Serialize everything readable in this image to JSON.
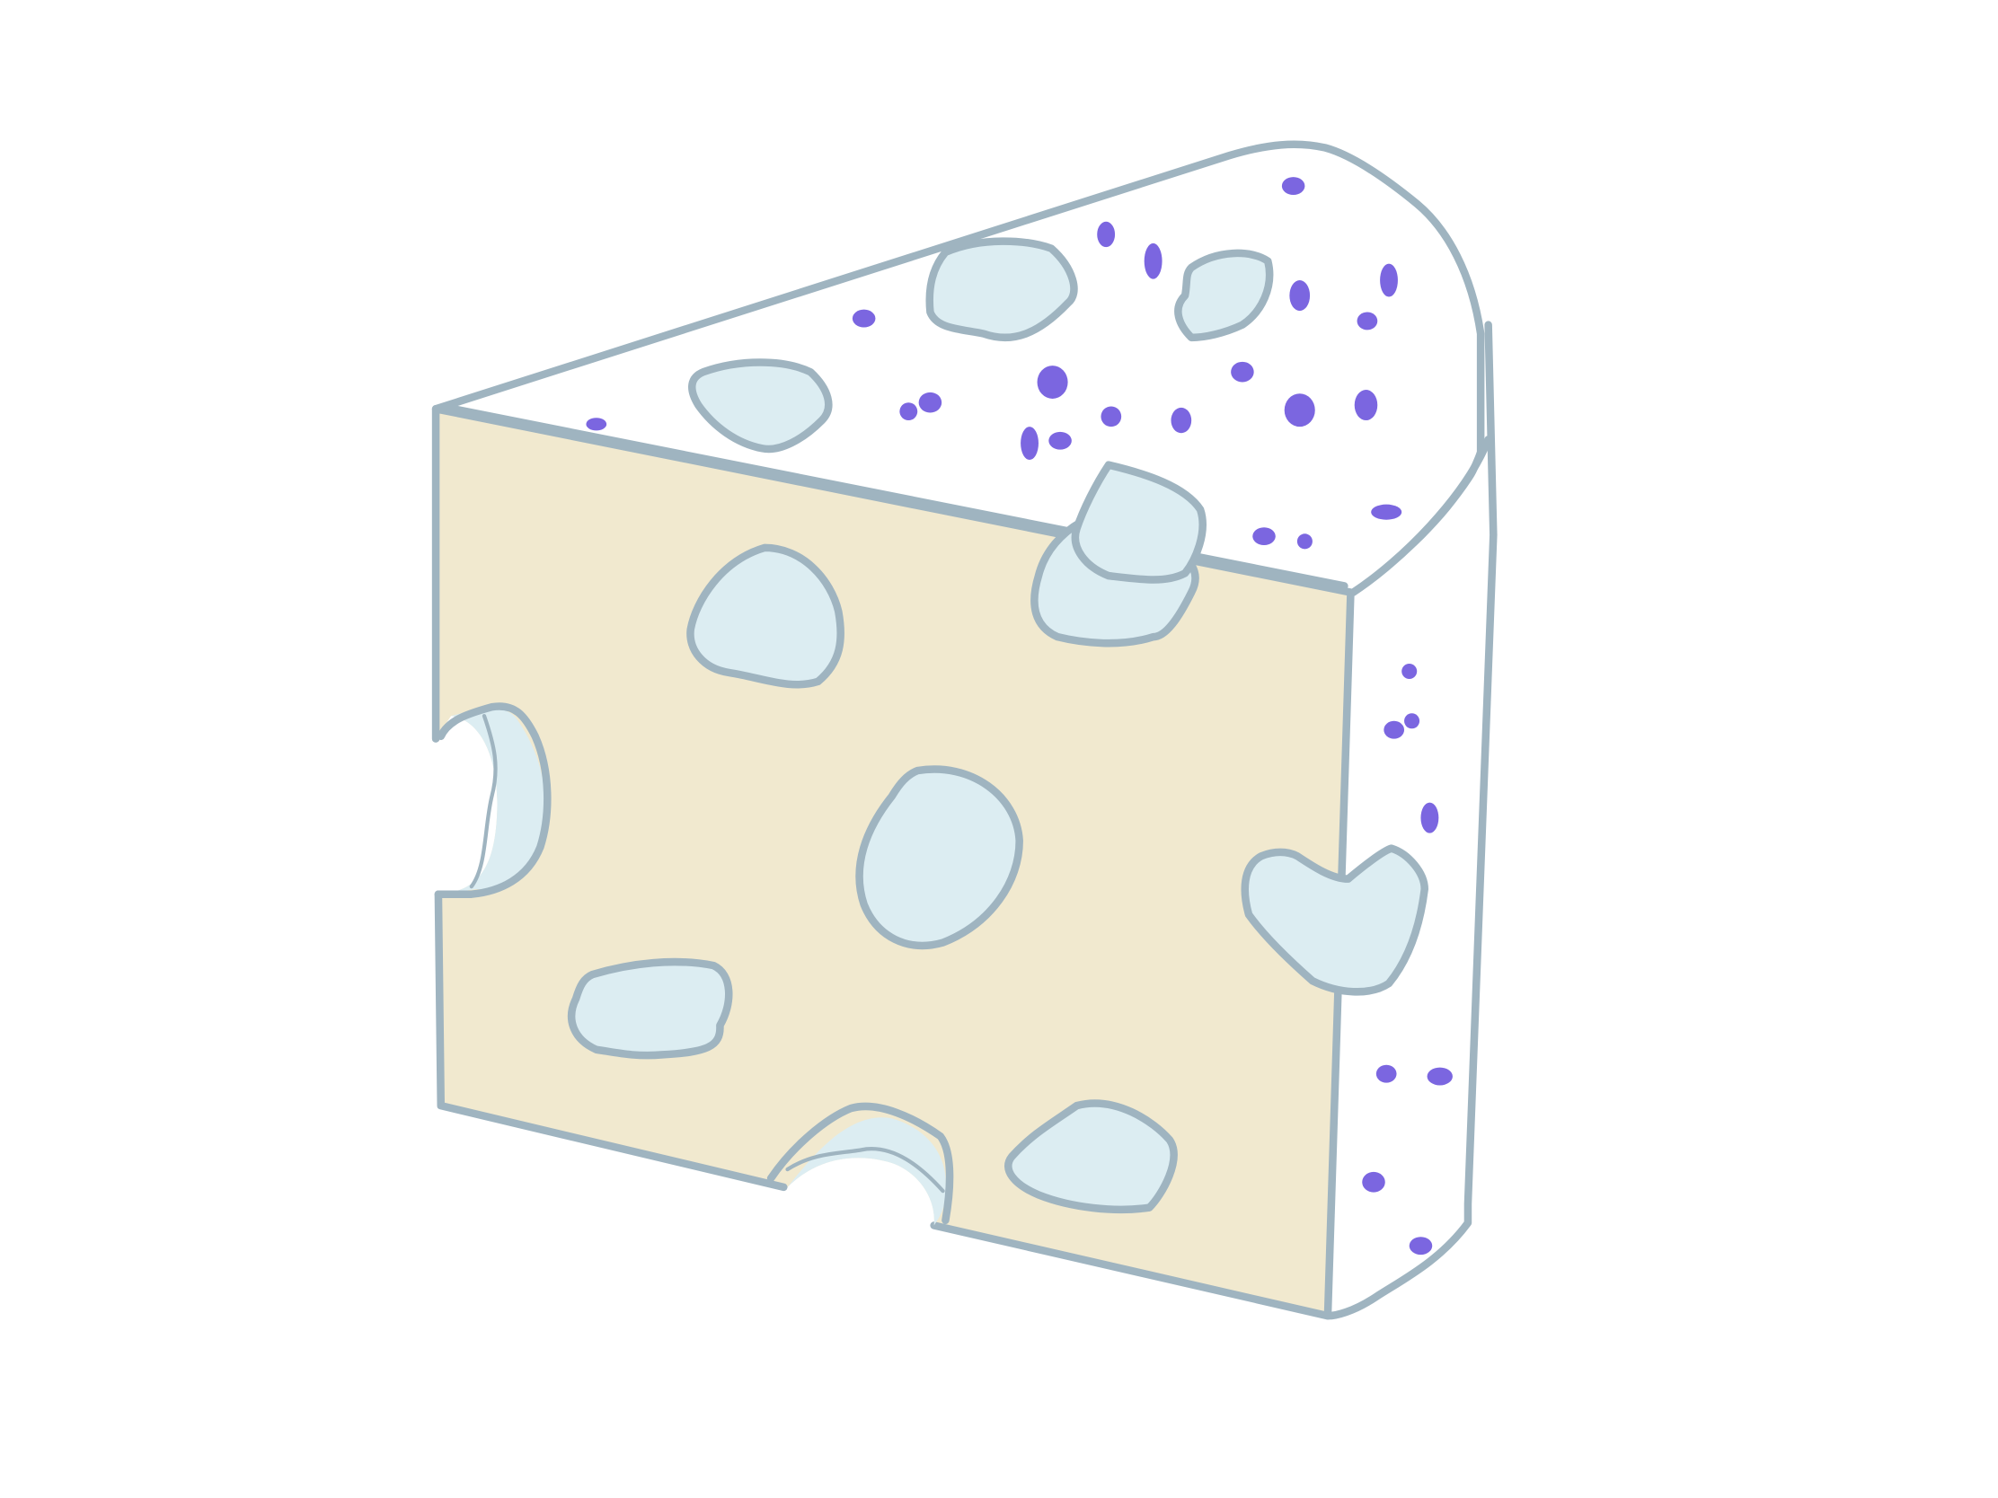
{
  "illustration": {
    "subject": "",
    "colors": {
      "background": "#ffffff",
      "outline": "#9fb4c0",
      "front_face": "#f1e9cf",
      "top_face": "#ffffff",
      "side_face": "#ffffff",
      "hole_fill": "#dcedf2",
      "speckle": "#7b66e0"
    }
  }
}
